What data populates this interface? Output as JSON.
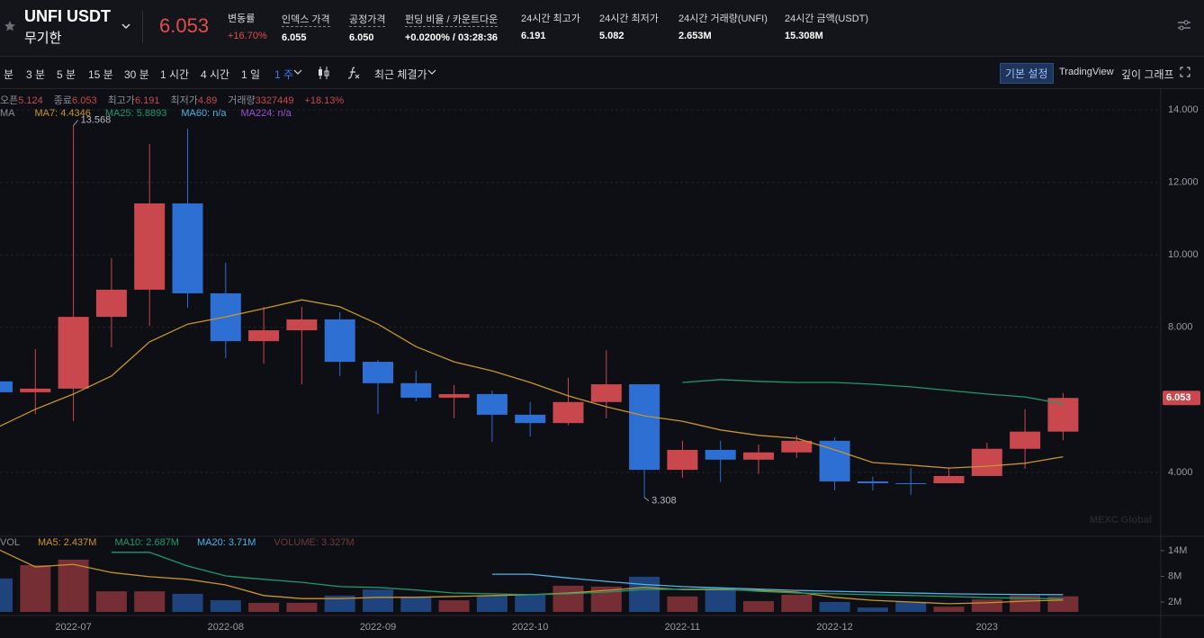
{
  "header": {
    "symbol": "UNFI USDT",
    "contract": "무기한",
    "price": "6.053",
    "stats": [
      {
        "label": "변동률",
        "value": "+16.70%"
      },
      {
        "label": "인덱스 가격",
        "value": "6.055"
      },
      {
        "label": "공정가격",
        "value": "6.050"
      },
      {
        "label": "펀딩 비율 / 카운트다운",
        "value": "+0.0200% / 03:28:36"
      },
      {
        "label": "24시간 최고가",
        "value": "6.191"
      },
      {
        "label": "24시간 최저가",
        "value": "5.082"
      },
      {
        "label": "24시간 거래량(UNFI)",
        "value": "2.653M"
      },
      {
        "label": "24시간 금액(USDT)",
        "value": "15.308M"
      }
    ]
  },
  "toolbar": {
    "intervals": [
      "분",
      "3 분",
      "5 분",
      "15 분",
      "30 분",
      "1 시간",
      "4 시간",
      "1 일",
      "1 주"
    ],
    "price_source": "최근 체결가",
    "buttons": [
      "기본 설정",
      "TradingView",
      "깊이 그래프"
    ]
  },
  "chart_data": {
    "type": "candlestick",
    "categories": [
      null,
      null,
      "2022-07",
      null,
      null,
      null,
      "2022-08",
      null,
      null,
      null,
      "2022-09",
      null,
      null,
      null,
      "2022-10",
      null,
      null,
      null,
      "2022-11",
      null,
      null,
      null,
      "2022-12",
      null,
      null,
      null,
      "2023",
      null,
      null
    ],
    "open": [
      6.51,
      6.21,
      6.31,
      8.29,
      9.04,
      11.42,
      8.94,
      7.62,
      7.92,
      8.22,
      7.05,
      6.46,
      6.06,
      6.16,
      5.59,
      5.36,
      5.94,
      6.43,
      4.07,
      4.62,
      4.35,
      4.55,
      4.87,
      3.75,
      3.7,
      3.7,
      3.9,
      4.65,
      5.124
    ],
    "high": [
      6.55,
      7.4,
      13.568,
      9.91,
      13.06,
      13.48,
      9.78,
      8.57,
      8.57,
      8.42,
      7.1,
      6.8,
      6.41,
      6.26,
      5.94,
      6.61,
      7.37,
      6.43,
      4.87,
      4.87,
      4.77,
      5.02,
      4.97,
      3.88,
      4.12,
      4.12,
      4.82,
      5.74,
      6.191
    ],
    "low": [
      6.2,
      5.61,
      5.41,
      7.45,
      8.04,
      8.54,
      7.15,
      7.0,
      6.43,
      6.66,
      5.61,
      5.96,
      5.49,
      4.84,
      4.99,
      5.3,
      5.49,
      3.308,
      3.85,
      3.73,
      3.95,
      4.4,
      3.5,
      3.5,
      3.38,
      3.7,
      3.9,
      4.1,
      4.89
    ],
    "close": [
      6.21,
      6.31,
      8.29,
      9.04,
      11.42,
      8.94,
      7.62,
      7.92,
      8.22,
      7.05,
      6.46,
      6.06,
      6.16,
      5.59,
      5.36,
      5.94,
      6.43,
      4.07,
      4.62,
      4.35,
      4.55,
      4.87,
      3.75,
      3.7,
      3.68,
      3.9,
      4.65,
      5.124,
      6.053
    ],
    "up_color": "#c9484e",
    "down_color": "#2d6fd2",
    "ylim": [
      2.26,
      14.55
    ],
    "yticks": [
      {
        "value": 4,
        "label": "4.000"
      },
      {
        "value": 8,
        "label": "8.000"
      },
      {
        "value": 10,
        "label": "10.000"
      },
      {
        "value": 12,
        "label": "12.000"
      },
      {
        "value": 14,
        "label": "14.000"
      }
    ],
    "grid": true,
    "ohlc_legend": {
      "labels": [
        "오픈",
        "종료",
        "최고가",
        "최저가",
        "거래량"
      ],
      "volume": "3327449",
      "change": "+18.13%"
    },
    "lines_label": "MA",
    "lines": [
      {
        "legend": "MA7: 4.4346",
        "color": "#c9952c",
        "values": [
          5.24,
          5.74,
          6.16,
          6.66,
          7.6,
          8.09,
          8.29,
          8.52,
          8.76,
          8.57,
          8.09,
          7.47,
          7.05,
          6.8,
          6.48,
          6.11,
          5.81,
          5.56,
          5.41,
          5.17,
          5.02,
          4.94,
          4.62,
          4.27,
          4.2,
          4.12,
          4.17,
          4.25,
          4.43
        ]
      },
      {
        "legend": "MA25: 5.8893",
        "color": "#1e9a6a",
        "values": [
          null,
          null,
          null,
          null,
          null,
          null,
          null,
          null,
          null,
          null,
          null,
          null,
          null,
          null,
          null,
          null,
          null,
          null,
          6.48,
          6.56,
          6.51,
          6.48,
          6.48,
          6.43,
          6.36,
          6.26,
          6.16,
          6.08,
          5.89
        ]
      },
      {
        "legend": "MA60: n/a",
        "color": "#4fb3e8"
      },
      {
        "legend": "MA224: n/a",
        "color": "#9b4fd8"
      }
    ],
    "watermark": "MEXC Global",
    "volume": {
      "label": "VOL",
      "legend": "VOLUME: 3.327M",
      "ylim": [
        0,
        16.5
      ],
      "yticks": [
        {
          "value": 2,
          "label": "2M"
        },
        {
          "value": 8,
          "label": "8M"
        },
        {
          "value": 14,
          "label": "14M"
        }
      ],
      "values": [
        7.5,
        10.6,
        11.9,
        4.5,
        4.5,
        3.9,
        2.4,
        1.8,
        1.8,
        3.5,
        4.9,
        3.3,
        2.4,
        3.5,
        3.9,
        5.8,
        5.6,
        7.9,
        3.3,
        4.9,
        2.2,
        3.7,
        2.0,
        0.7,
        2.0,
        0.9,
        2.6,
        3.5,
        3.327
      ],
      "lines": [
        {
          "legend": "MA5: 2.437M",
          "color": "#c9952c",
          "values": [
            14.4,
            10.2,
            10.8,
            8.9,
            7.9,
            7.3,
            6.0,
            3.5,
            2.8,
            2.8,
            3.1,
            3.1,
            3.3,
            3.5,
            3.7,
            4.1,
            4.7,
            5.4,
            4.9,
            4.9,
            4.7,
            4.3,
            3.1,
            2.4,
            2.0,
            1.6,
            1.8,
            2.2,
            2.437
          ]
        },
        {
          "legend": "MA10: 2.687M",
          "color": "#1e9a6a",
          "values": [
            null,
            null,
            null,
            13.6,
            13.6,
            10.4,
            8.1,
            7.3,
            6.6,
            5.6,
            5.4,
            4.8,
            4.1,
            3.9,
            3.7,
            3.9,
            4.3,
            4.9,
            5.0,
            5.1,
            4.5,
            4.1,
            3.9,
            3.7,
            3.5,
            3.3,
            3.0,
            2.9,
            2.687
          ]
        },
        {
          "legend": "MA20: 3.71M",
          "color": "#4fb3e8",
          "values": [
            null,
            null,
            null,
            null,
            null,
            null,
            null,
            null,
            null,
            null,
            null,
            null,
            null,
            8.5,
            8.5,
            7.6,
            6.8,
            6.1,
            5.6,
            5.3,
            5.0,
            4.7,
            4.5,
            4.3,
            4.1,
            3.9,
            3.8,
            3.75,
            3.71
          ]
        }
      ]
    }
  }
}
